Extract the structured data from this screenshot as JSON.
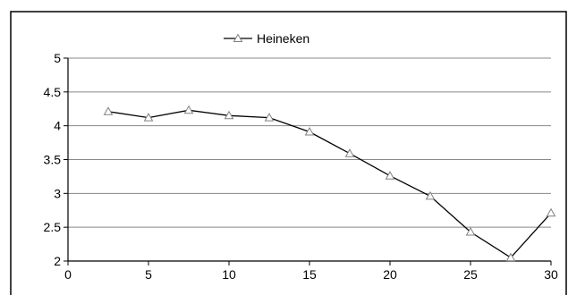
{
  "chart_data": {
    "type": "line",
    "title": "",
    "xlabel": "",
    "ylabel": "",
    "xlim": [
      0,
      30
    ],
    "ylim": [
      2,
      5
    ],
    "x_ticks": [
      "0",
      "5",
      "10",
      "15",
      "20",
      "25",
      "30"
    ],
    "y_ticks": [
      "5",
      "4.5",
      "4",
      "3.5",
      "3",
      "2.5",
      "2"
    ],
    "grid": "horizontal",
    "legend_position": "top-center",
    "series": [
      {
        "name": "Heineken",
        "marker": "triangle",
        "color": "#000000",
        "marker_color": "#808080",
        "x": [
          2.5,
          5,
          7.5,
          10,
          12.5,
          15,
          17.5,
          20,
          22.5,
          25,
          27.5,
          30
        ],
        "y": [
          4.21,
          4.12,
          4.23,
          4.15,
          4.12,
          3.91,
          3.59,
          3.26,
          2.96,
          2.43,
          2.05,
          2.71
        ]
      }
    ]
  }
}
